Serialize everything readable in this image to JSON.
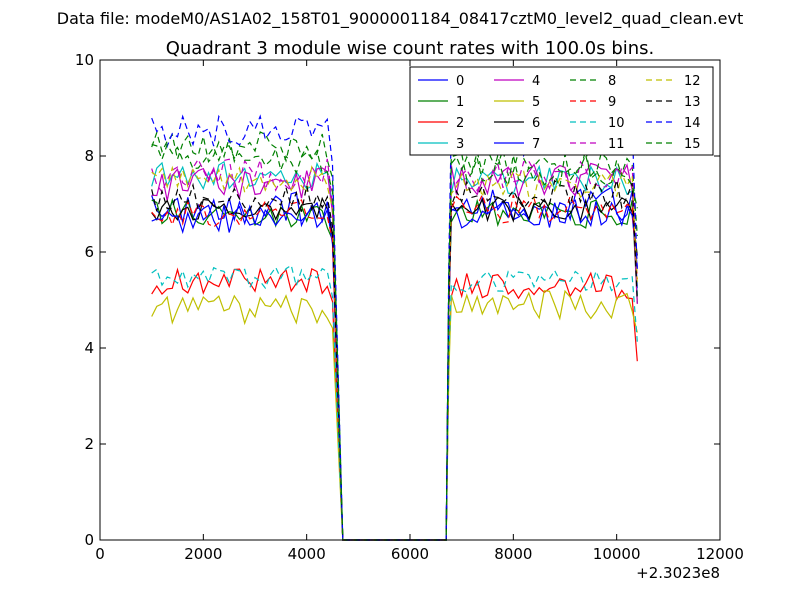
{
  "suptitle": "Data file: modeM0/AS1A02_158T01_9000001184_08417cztM0_level2_quad_clean.evt",
  "chart_data": {
    "type": "line",
    "title": "Quadrant 3 module wise count rates with 100.0s bins.",
    "xlabel": "",
    "ylabel": "",
    "xlim": [
      0,
      12000
    ],
    "ylim": [
      0,
      10
    ],
    "xticks": [
      "0",
      "2000",
      "4000",
      "6000",
      "8000",
      "10000",
      "12000"
    ],
    "yticks": [
      "0",
      "2",
      "4",
      "6",
      "8",
      "10"
    ],
    "x_offset_label": "+2.3023e8",
    "legend_position": "top-right",
    "grid": false,
    "series": [
      {
        "name": "0",
        "color": "#0000ff",
        "dash": "solid",
        "base_a": 6.9,
        "base_b": 7.0,
        "amp": 0.35
      },
      {
        "name": "1",
        "color": "#008000",
        "dash": "solid",
        "base_a": 6.8,
        "base_b": 6.8,
        "amp": 0.3
      },
      {
        "name": "2",
        "color": "#ff0000",
        "dash": "solid",
        "base_a": 5.4,
        "base_b": 5.3,
        "amp": 0.3
      },
      {
        "name": "3",
        "color": "#00bfbf",
        "dash": "solid",
        "base_a": 7.6,
        "base_b": 7.5,
        "amp": 0.3
      },
      {
        "name": "4",
        "color": "#bf00bf",
        "dash": "solid",
        "base_a": 7.4,
        "base_b": 7.5,
        "amp": 0.35
      },
      {
        "name": "5",
        "color": "#bfbf00",
        "dash": "solid",
        "base_a": 4.8,
        "base_b": 4.9,
        "amp": 0.3
      },
      {
        "name": "6",
        "color": "#000000",
        "dash": "solid",
        "base_a": 6.9,
        "base_b": 6.9,
        "amp": 0.25
      },
      {
        "name": "7",
        "color": "#0000ff",
        "dash": "solid",
        "base_a": 6.7,
        "base_b": 6.8,
        "amp": 0.3
      },
      {
        "name": "8",
        "color": "#008000",
        "dash": "dashed",
        "base_a": 8.2,
        "base_b": 7.8,
        "amp": 0.35
      },
      {
        "name": "9",
        "color": "#ff0000",
        "dash": "dashed",
        "base_a": 6.8,
        "base_b": 6.9,
        "amp": 0.3
      },
      {
        "name": "10",
        "color": "#00bfbf",
        "dash": "dashed",
        "base_a": 5.5,
        "base_b": 5.4,
        "amp": 0.25
      },
      {
        "name": "11",
        "color": "#bf00bf",
        "dash": "dashed",
        "base_a": 7.6,
        "base_b": 7.6,
        "amp": 0.35
      },
      {
        "name": "12",
        "color": "#bfbf00",
        "dash": "dashed",
        "base_a": 7.5,
        "base_b": 7.4,
        "amp": 0.3
      },
      {
        "name": "13",
        "color": "#000000",
        "dash": "dashed",
        "base_a": 7.1,
        "base_b": 7.2,
        "amp": 0.3
      },
      {
        "name": "14",
        "color": "#0000ff",
        "dash": "dashed",
        "base_a": 8.5,
        "base_b": 8.3,
        "amp": 0.35
      },
      {
        "name": "15",
        "color": "#008000",
        "dash": "dashed",
        "base_a": 7.9,
        "base_b": 7.7,
        "amp": 0.35
      }
    ],
    "segments": {
      "a_start": 1000,
      "a_end": 4400,
      "drop_to_zero": 4700,
      "zero_end": 6700,
      "b_start": 6800,
      "b_end": 10300,
      "last_point": 10400,
      "bin": 100
    }
  }
}
